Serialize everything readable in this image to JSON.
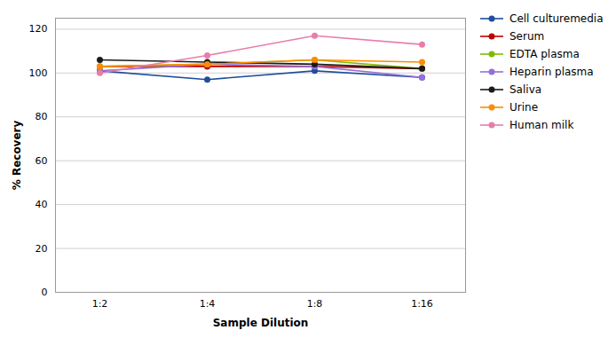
{
  "chart_data": {
    "type": "line",
    "categories": [
      "1:2",
      "1:4",
      "1:8",
      "1:16"
    ],
    "series": [
      {
        "name": "Cell culturemedia",
        "color": "#1f4e9c",
        "values": [
          101,
          97,
          101,
          98
        ]
      },
      {
        "name": "Serum",
        "color": "#c00000",
        "values": [
          103,
          103,
          103,
          102
        ]
      },
      {
        "name": "EDTA plasma",
        "color": "#7fba00",
        "values": [
          103,
          104,
          106,
          102
        ]
      },
      {
        "name": "Heparin plasma",
        "color": "#9370db",
        "values": [
          101,
          104,
          103,
          98
        ]
      },
      {
        "name": "Saliva",
        "color": "#1a1a1a",
        "values": [
          106,
          105,
          104,
          102
        ]
      },
      {
        "name": "Urine",
        "color": "#ff8c00",
        "values": [
          103,
          104,
          106,
          105
        ]
      },
      {
        "name": "Human milk",
        "color": "#e87dac",
        "values": [
          100,
          108,
          117,
          113
        ]
      }
    ],
    "xlabel": "Sample Dilution",
    "ylabel": "% Recovery",
    "ylim": [
      0,
      125
    ],
    "yticks": [
      0,
      20,
      40,
      60,
      80,
      100,
      120
    ],
    "grid": true,
    "legend": "right",
    "marker": "circle"
  }
}
